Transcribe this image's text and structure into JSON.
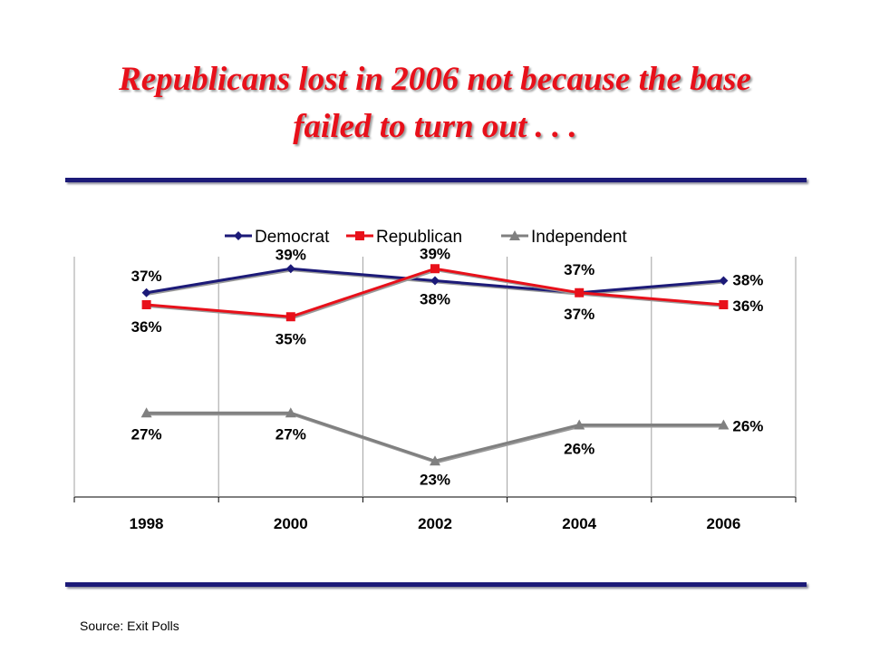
{
  "title_lines": [
    "Republicans lost in 2006 not because the base",
    "failed to turn out . . ."
  ],
  "source": "Source:  Exit Polls",
  "chart_data": {
    "type": "line",
    "categories": [
      "1998",
      "2000",
      "2002",
      "2004",
      "2006"
    ],
    "series": [
      {
        "name": "Democrat",
        "values": [
          37,
          39,
          38,
          37,
          38
        ],
        "labels": [
          "37%",
          "39%",
          "38%",
          "37%",
          "38%"
        ],
        "color": "#1c1a78",
        "marker": "diamond"
      },
      {
        "name": "Republican",
        "values": [
          36,
          35,
          39,
          37,
          36
        ],
        "labels": [
          "36%",
          "35%",
          "39%",
          "37%",
          "36%"
        ],
        "color": "#e8101a",
        "marker": "square"
      },
      {
        "name": "Independent",
        "values": [
          27,
          27,
          23,
          26,
          26
        ],
        "labels": [
          "27%",
          "27%",
          "23%",
          "26%",
          "26%"
        ],
        "color": "#808080",
        "marker": "triangle"
      }
    ],
    "legend_position": "top",
    "grid": "vertical",
    "ylim": [
      20,
      40
    ]
  }
}
